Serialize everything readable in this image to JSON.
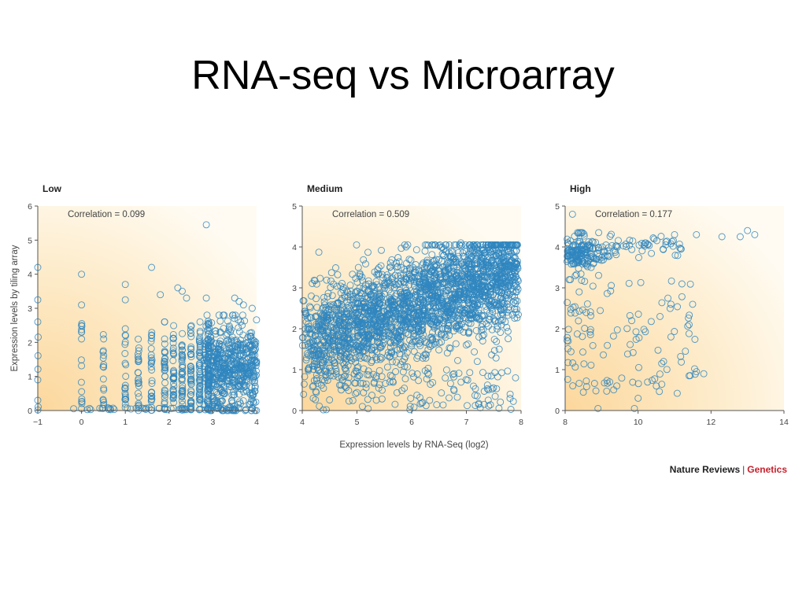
{
  "slide": {
    "title": "RNA-seq vs Microarray"
  },
  "figure": {
    "ylabel": "Expression levels by tiling array",
    "xlabel": "Expression levels by RNA-Seq (log2)",
    "credit_publisher": "Nature Reviews",
    "credit_separator": "|",
    "credit_journal": "Genetics",
    "colors": {
      "marker": "#2f86c0",
      "bg_warm": "#fde3b5",
      "bg_light": "#fffaf0",
      "axis": "#555555"
    }
  },
  "chart_data": [
    {
      "type": "scatter",
      "title": "Low",
      "annotation": "Correlation = 0.099",
      "correlation": 0.099,
      "xlim": [
        -1,
        4
      ],
      "ylim": [
        0,
        6
      ],
      "xticks": [
        -1,
        0,
        1,
        2,
        3,
        4
      ],
      "yticks": [
        0,
        1,
        2,
        3,
        4,
        5,
        6
      ],
      "marker": "open circle",
      "distribution": {
        "description": "points concentrated at discrete x columns, density rising with x",
        "columns_x": [
          -1,
          0,
          0.5,
          1,
          1.3,
          1.6,
          1.9,
          2.1,
          2.3,
          2.5,
          2.7,
          2.9
        ],
        "dense_region_x": [
          2.8,
          4.0
        ],
        "dense_region_y": [
          0,
          2.8
        ],
        "bulk_y": [
          0,
          2.6
        ]
      },
      "points": [
        {
          "x": -1,
          "y": 0.3
        },
        {
          "x": -1,
          "y": 0.9
        },
        {
          "x": -1,
          "y": 3.25
        },
        {
          "x": -1,
          "y": 4.2
        },
        {
          "x": 0,
          "y": 4.0
        },
        {
          "x": 0,
          "y": 3.1
        },
        {
          "x": 0,
          "y": 2.5
        },
        {
          "x": 0,
          "y": 2.3
        },
        {
          "x": 0,
          "y": 2.1
        },
        {
          "x": 1,
          "y": 3.7
        },
        {
          "x": 1,
          "y": 3.25
        },
        {
          "x": 1,
          "y": 2.4
        },
        {
          "x": 1.6,
          "y": 4.2
        },
        {
          "x": 1.8,
          "y": 3.4
        },
        {
          "x": 2.2,
          "y": 3.6
        },
        {
          "x": 2.3,
          "y": 3.5
        },
        {
          "x": 2.4,
          "y": 3.3
        },
        {
          "x": 2.85,
          "y": 3.3
        },
        {
          "x": 2.85,
          "y": 5.45
        },
        {
          "x": 3.5,
          "y": 3.3
        },
        {
          "x": 3.6,
          "y": 3.2
        },
        {
          "x": 3.7,
          "y": 3.1
        },
        {
          "x": 3.9,
          "y": 3.0
        }
      ]
    },
    {
      "type": "scatter",
      "title": "Medium",
      "annotation": "Correlation = 0.509",
      "correlation": 0.509,
      "xlim": [
        4,
        8
      ],
      "ylim": [
        0,
        5
      ],
      "xticks": [
        4,
        5,
        6,
        7,
        8
      ],
      "yticks": [
        0,
        1,
        2,
        3,
        4,
        5
      ],
      "marker": "open circle",
      "distribution": {
        "description": "dense positively correlated cloud rising from about 1.6 at x=4 to about 3.4 at x=7.8",
        "trend_start": [
          4,
          1.6
        ],
        "trend_end": [
          7.8,
          3.4
        ],
        "bulk_y": [
          0,
          4.1
        ]
      },
      "points": [
        {
          "x": 6.9,
          "y": 4.1
        },
        {
          "x": 7.1,
          "y": 4.0
        },
        {
          "x": 7.7,
          "y": 4.0
        },
        {
          "x": 5.9,
          "y": 4.0
        },
        {
          "x": 4.2,
          "y": 0.3
        },
        {
          "x": 5.1,
          "y": 0.1
        },
        {
          "x": 6.2,
          "y": 0.2
        },
        {
          "x": 7.8,
          "y": 0.4
        },
        {
          "x": 7.2,
          "y": 1.2
        },
        {
          "x": 7.6,
          "y": 1.5
        },
        {
          "x": 7.9,
          "y": 0.8
        }
      ]
    },
    {
      "type": "scatter",
      "title": "High",
      "annotation": "Correlation = 0.177",
      "correlation": 0.177,
      "xlim": [
        8,
        14
      ],
      "ylim": [
        0,
        5
      ],
      "xticks": [
        8,
        10,
        12,
        14
      ],
      "yticks": [
        0,
        1,
        2,
        3,
        4,
        5
      ],
      "marker": "open circle",
      "distribution": {
        "description": "dense cluster near y=3.5 to 4.3 at x=8 to 9.5, horizontal band near y=4.1 extending to x=13.2, sparse scatter below",
        "cluster_x": [
          8,
          9.5
        ],
        "cluster_y": [
          3.3,
          4.3
        ]
      },
      "points": [
        {
          "x": 8.2,
          "y": 4.8
        },
        {
          "x": 11.0,
          "y": 4.3
        },
        {
          "x": 11.6,
          "y": 4.3
        },
        {
          "x": 12.3,
          "y": 4.25
        },
        {
          "x": 12.8,
          "y": 4.25
        },
        {
          "x": 13.0,
          "y": 4.4
        },
        {
          "x": 13.2,
          "y": 4.3
        },
        {
          "x": 11.4,
          "y": 2.1
        },
        {
          "x": 11.6,
          "y": 0.95
        },
        {
          "x": 11.8,
          "y": 0.9
        },
        {
          "x": 11.4,
          "y": 0.85
        },
        {
          "x": 10.7,
          "y": 1.2
        },
        {
          "x": 10.5,
          "y": 0.6
        },
        {
          "x": 10.0,
          "y": 0.3
        },
        {
          "x": 9.9,
          "y": 0.05
        },
        {
          "x": 8.9,
          "y": 0.05
        },
        {
          "x": 10.9,
          "y": 2.6
        },
        {
          "x": 10.6,
          "y": 2.3
        },
        {
          "x": 10.9,
          "y": 1.8
        }
      ]
    }
  ]
}
